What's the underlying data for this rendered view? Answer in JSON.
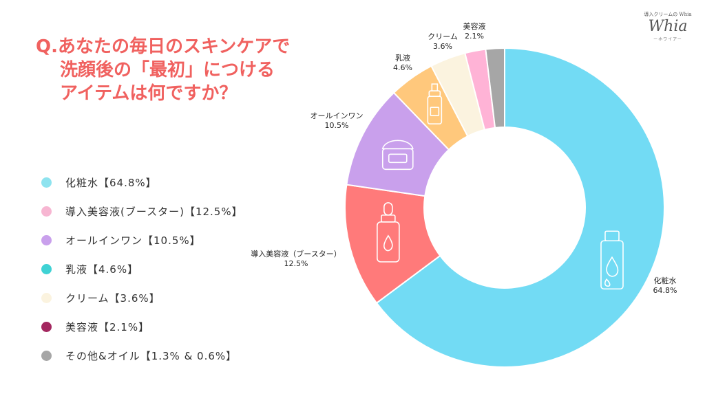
{
  "title": {
    "line1": "Q.あなたの毎日のスキンケアで",
    "line2": "洗顔後の「最初」につける",
    "line3": "アイテムは何ですか？"
  },
  "brand": {
    "top": "導入クリームの Whia",
    "logo": "Whia",
    "sub": "ーホワイアー"
  },
  "legend": [
    {
      "label": "化粧水【64.8%】",
      "color": "#8ee3ef"
    },
    {
      "label": "導入美容液(ブースター)【12.5%】",
      "color": "#f7b6d2"
    },
    {
      "label": "オールインワン【10.5%】",
      "color": "#c9a0ec"
    },
    {
      "label": "乳液【4.6%】",
      "color": "#3fd2d4"
    },
    {
      "label": "クリーム【3.6%】",
      "color": "#fbf3df"
    },
    {
      "label": "美容液【2.1%】",
      "color": "#a3275f"
    },
    {
      "label": "その他&オイル【1.3% & 0.6%】",
      "color": "#a6a6a6"
    }
  ],
  "chart_data": {
    "type": "pie",
    "donut": true,
    "slices": [
      {
        "label": "化粧水",
        "value": 64.8,
        "pct_label": "64.8%",
        "color": "#72dbf4",
        "icon": "toner-bottle-icon"
      },
      {
        "label": "導入美容液（ブースター）",
        "value": 12.5,
        "pct_label": "12.5%",
        "color": "#ff7a7a",
        "icon": "dropper-bottle-icon"
      },
      {
        "label": "オールインワン",
        "value": 10.5,
        "pct_label": "10.5%",
        "color": "#c9a0ec",
        "icon": "cream-jar-icon"
      },
      {
        "label": "乳液",
        "value": 4.6,
        "pct_label": "4.6%",
        "color": "#ffc87c",
        "icon": "pump-bottle-icon"
      },
      {
        "label": "クリーム",
        "value": 3.6,
        "pct_label": "3.6%",
        "color": "#fbf3df",
        "icon": ""
      },
      {
        "label": "美容液",
        "value": 2.1,
        "pct_label": "2.1%",
        "color": "#ffb3d6",
        "icon": ""
      },
      {
        "label": "",
        "value": 1.9,
        "pct_label": "",
        "color": "#a6a6a6",
        "icon": ""
      }
    ]
  }
}
